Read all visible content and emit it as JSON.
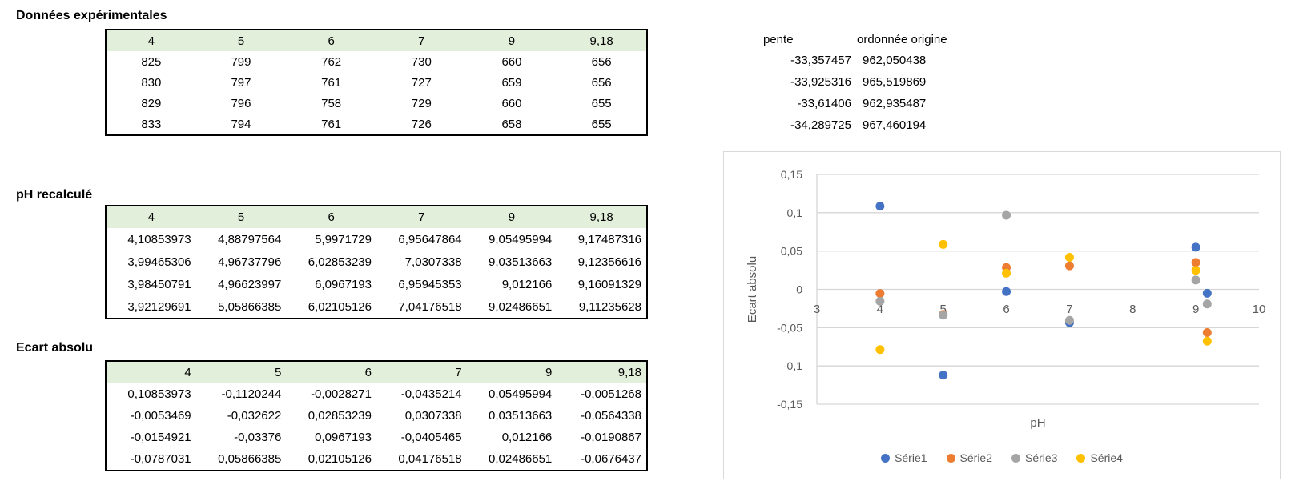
{
  "sections": [
    {
      "title": "Données expérimentales",
      "header": [
        "4",
        "5",
        "6",
        "7",
        "9",
        "9,18"
      ],
      "rows": [
        [
          "825",
          "799",
          "762",
          "730",
          "660",
          "656"
        ],
        [
          "830",
          "797",
          "761",
          "727",
          "659",
          "656"
        ],
        [
          "829",
          "796",
          "758",
          "729",
          "660",
          "655"
        ],
        [
          "833",
          "794",
          "761",
          "726",
          "658",
          "655"
        ]
      ]
    },
    {
      "title": "pH recalculé",
      "header": [
        "4",
        "5",
        "6",
        "7",
        "9",
        "9,18"
      ],
      "rows": [
        [
          "4,10853973",
          "4,88797564",
          "5,9971729",
          "6,95647864",
          "9,05495994",
          "9,17487316"
        ],
        [
          "3,99465306",
          "4,96737796",
          "6,02853239",
          "7,0307338",
          "9,03513663",
          "9,12356616"
        ],
        [
          "3,98450791",
          "4,96623997",
          "6,0967193",
          "6,95945353",
          "9,012166",
          "9,16091329"
        ],
        [
          "3,92129691",
          "5,05866385",
          "6,02105126",
          "7,04176518",
          "9,02486651",
          "9,11235628"
        ]
      ]
    },
    {
      "title": "Ecart absolu",
      "header": [
        "4",
        "5",
        "6",
        "7",
        "9",
        "9,18"
      ],
      "rows": [
        [
          "0,10853973",
          "-0,1120244",
          "-0,0028271",
          "-0,0435214",
          "0,05495994",
          "-0,0051268"
        ],
        [
          "-0,0053469",
          "-0,032622",
          "0,02853239",
          "0,0307338",
          "0,03513663",
          "-0,0564338"
        ],
        [
          "-0,0154921",
          "-0,03376",
          "0,0967193",
          "-0,0405465",
          "0,012166",
          "-0,0190867"
        ],
        [
          "-0,0787031",
          "0,05866385",
          "0,02105126",
          "0,04176518",
          "0,02486651",
          "-0,0676437"
        ]
      ]
    }
  ],
  "regression": {
    "col1_label": "pente",
    "col2_label": "ordonnée origine",
    "rows": [
      [
        "-33,357457",
        "962,050438"
      ],
      [
        "-33,925316",
        "965,519869"
      ],
      [
        "-33,61406",
        "962,935487"
      ],
      [
        "-34,289725",
        "967,460194"
      ]
    ]
  },
  "chart_data": {
    "type": "scatter",
    "xlabel": "pH",
    "ylabel": "Ecart absolu",
    "xlim": [
      3,
      10
    ],
    "ylim": [
      -0.15,
      0.15
    ],
    "x_ticks": [
      "3",
      "4",
      "5",
      "6",
      "7",
      "8",
      "9",
      "10"
    ],
    "y_ticks": [
      "0,15",
      "0,1",
      "0,05",
      "0",
      "-0,05",
      "-0,1",
      "-0,15"
    ],
    "grid": true,
    "legend_position": "bottom",
    "x": [
      4,
      5,
      6,
      7,
      9,
      9.18
    ],
    "series": [
      {
        "name": "Série1",
        "color": "#4472C4",
        "values": [
          0.10853973,
          -0.1120244,
          -0.0028271,
          -0.0435214,
          0.05495994,
          -0.0051268
        ]
      },
      {
        "name": "Série2",
        "color": "#ED7D31",
        "values": [
          -0.0053469,
          -0.032622,
          0.02853239,
          0.0307338,
          0.03513663,
          -0.0564338
        ]
      },
      {
        "name": "Série3",
        "color": "#A5A5A5",
        "values": [
          -0.0154921,
          -0.03376,
          0.0967193,
          -0.0405465,
          0.012166,
          -0.0190867
        ]
      },
      {
        "name": "Série4",
        "color": "#FFC000",
        "values": [
          -0.0787031,
          0.05866385,
          0.02105126,
          0.04176518,
          0.02486651,
          -0.0676437
        ]
      }
    ],
    "text_color": "#595959",
    "gridline_color": "#D6D6D6"
  }
}
